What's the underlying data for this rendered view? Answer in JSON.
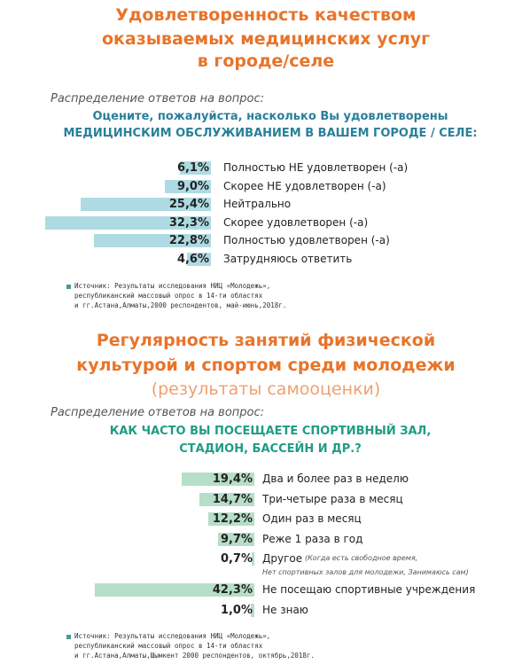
{
  "chart_data": [
    {
      "type": "bar",
      "title": [
        "Удовлетворенность качеством",
        "оказываемых медицинских услуг",
        "в городе/селе"
      ],
      "intro": "Распределение ответов на вопрос:",
      "question": [
        "Оцените, пожалуйста, насколько Вы удовлетворены",
        "МЕДИЦИНСКИМ ОБСЛУЖИВАНИЕМ В ВАШЕМ ГОРОДЕ / СЕЛЕ:"
      ],
      "categories": [
        "Полностью НЕ удовлетворен (-а)",
        "Скорее НЕ удовлетворен (-а)",
        "Нейтрально",
        "Скорее удовлетворен (-а)",
        "Полностью удовлетворен (-а)",
        "Затрудняюсь ответить"
      ],
      "values": [
        6.1,
        9.0,
        25.4,
        32.3,
        22.8,
        4.6
      ],
      "value_labels": [
        "6,1%",
        "9,0%",
        "25,4%",
        "32,3%",
        "22,8%",
        "4,6%"
      ],
      "color": "#aedbe3",
      "source": [
        "Источник: Результаты исследования НИЦ «Молодежь»,",
        "республиканский массовый опрос в 14-ти областях",
        "и гг.Астана,Алматы,2000 респондентов, май-июнь,2018г."
      ]
    },
    {
      "type": "bar",
      "title": [
        "Регулярность занятий физической",
        "культурой  и спортом среди молодежи"
      ],
      "subtitle": "(результаты самооценки)",
      "intro": "Распределение ответов на вопрос:",
      "question": [
        "КАК ЧАСТО ВЫ ПОСЕЩАЕТЕ СПОРТИВНЫЙ ЗАЛ,",
        "СТАДИОН, БАССЕЙН И ДР.?"
      ],
      "categories": [
        "Два и более раз в неделю",
        "Три-четыре раза в месяц",
        "Один раз в месяц",
        "Реже 1 раза в год",
        "Другое",
        "Не посещаю спортивные учреждения",
        "Не знаю"
      ],
      "values": [
        19.4,
        14.7,
        12.2,
        9.7,
        0.7,
        42.3,
        1.0
      ],
      "value_labels": [
        "19,4%",
        "14,7%",
        "12,2%",
        "9,7%",
        "0,7%",
        "42,3%",
        "1,0%"
      ],
      "other_note": [
        "(Когда есть свободное время,",
        "Нет спортивных залов для молодежи, Занимаюсь сам)"
      ],
      "color": "#b7dec8",
      "source": [
        "Источник: Результаты исследования НИЦ «Молодежь»,",
        "республиканский массовый опрос в 14-ти областях",
        "и гг.Астана,Алматы,Шымкент 2000 респондентов, октябрь,2018г."
      ]
    }
  ]
}
